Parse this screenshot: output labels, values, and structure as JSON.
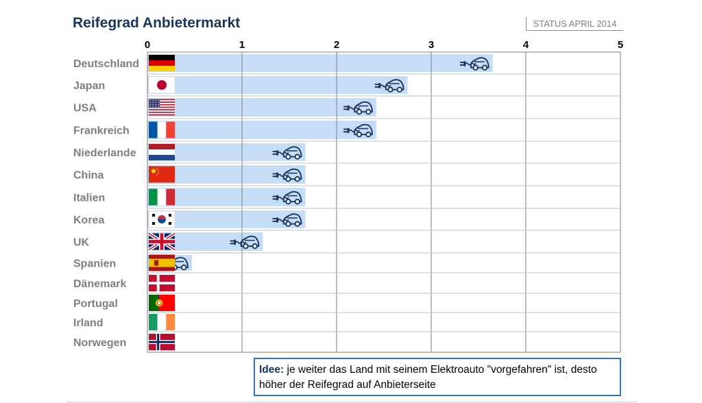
{
  "title": "Reifegrad Anbietermarkt",
  "status": "STATUS APRIL 2014",
  "note": {
    "label": "Idee:",
    "text": "je weiter das Land mit seinem Elektroauto \"vorgefahren\" ist, desto höher der Reifegrad auf Anbieterseite"
  },
  "colors": {
    "bar": "#c5ddf6",
    "car_icon": "#17365d",
    "title": "#17365d",
    "grid": "#7f7f7f"
  },
  "chart_data": {
    "type": "bar",
    "orientation": "horizontal",
    "xlim": [
      0,
      5
    ],
    "xticks": [
      0,
      1,
      2,
      3,
      4,
      5
    ],
    "grid": true,
    "bar_marker": "car-plug-icon",
    "categories": [
      "Deutschland",
      "Japan",
      "USA",
      "Frankreich",
      "Niederlande",
      "China",
      "Italien",
      "Korea",
      "UK",
      "Spanien",
      "Dänemark",
      "Portugal",
      "Irland",
      "Norwegen"
    ],
    "flags": [
      "flag-germany",
      "flag-japan",
      "flag-usa",
      "flag-france",
      "flag-netherlands",
      "flag-china",
      "flag-italy",
      "flag-korea",
      "flag-uk",
      "flag-spain",
      "flag-denmark",
      "flag-portugal",
      "flag-ireland",
      "flag-norway"
    ],
    "values": [
      3.65,
      2.75,
      2.42,
      2.42,
      1.67,
      1.67,
      1.67,
      1.67,
      1.22,
      0.47,
      0,
      0,
      0,
      0
    ]
  }
}
